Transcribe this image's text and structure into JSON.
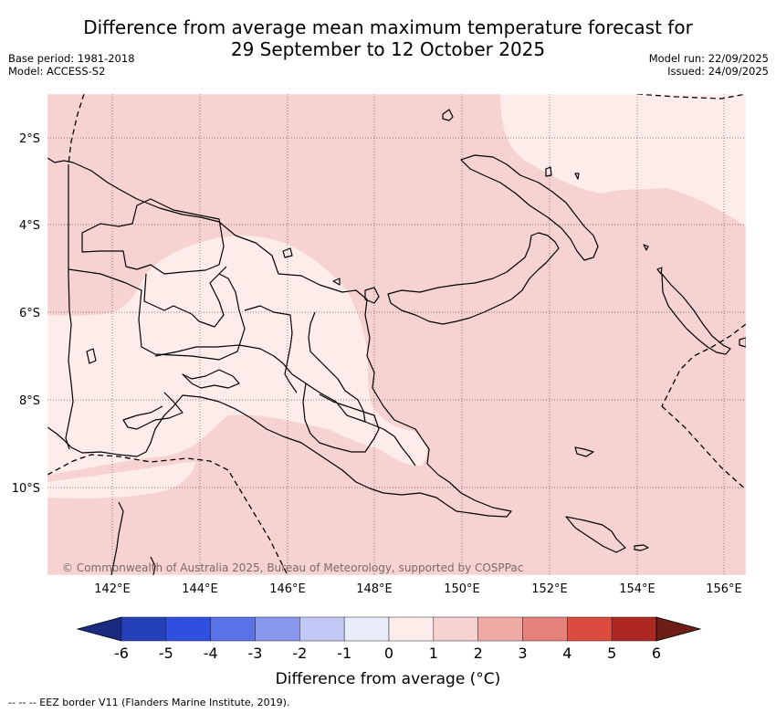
{
  "title_line1": "Difference from average mean maximum temperature forecast for",
  "title_line2": "29 September to 12 October 2025",
  "meta_left": {
    "base_period": "Base period: 1981-2018",
    "model": "Model: ACCESS-S2"
  },
  "meta_right": {
    "model_run": "Model run: 22/09/2025",
    "issued": "Issued: 24/09/2025"
  },
  "copyright": "© Commonwealth of Australia 2025, Bureau of Meteorology, supported by COSPPac",
  "lat_labels": [
    "2°S",
    "4°S",
    "6°S",
    "8°S",
    "10°S"
  ],
  "lon_labels": [
    "142°E",
    "144°E",
    "146°E",
    "148°E",
    "150°E",
    "152°E",
    "154°E",
    "156°E"
  ],
  "colorbar": {
    "ticks": [
      "-6",
      "-5",
      "-4",
      "-3",
      "-2",
      "-1",
      "0",
      "1",
      "2",
      "3",
      "4",
      "5",
      "6"
    ],
    "colors": [
      "#1a2a80",
      "#2440b8",
      "#2f4fe0",
      "#5a72e8",
      "#8896ee",
      "#c0c8f6",
      "#e8ecfb",
      "#fdecea",
      "#f6d3d0",
      "#efaaa5",
      "#e6807a",
      "#db4b3e",
      "#ad2821",
      "#6e1c16"
    ],
    "label": "Difference from average (°C)"
  },
  "legend_note": "--  --  -- EEZ border V11 (Flanders Marine Institute, 2019).",
  "map_colors": {
    "class_0_1": "#fdecea",
    "class_1_2": "#f6d3d0"
  }
}
